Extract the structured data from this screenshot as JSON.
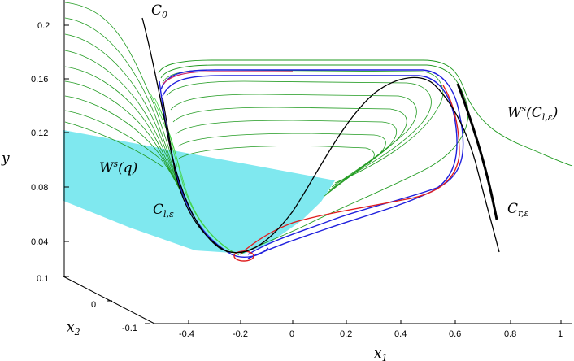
{
  "figure": {
    "y_axis": {
      "label": "y",
      "ticks": [
        "0.04",
        "0.08",
        "0.12",
        "0.16",
        "0.2"
      ]
    },
    "x1_axis": {
      "label_main": "x",
      "label_sub": "1",
      "ticks": [
        "-0.4",
        "-0.2",
        "0",
        "0.2",
        "0.4",
        "0.6",
        "0.8",
        "1"
      ]
    },
    "x2_axis": {
      "label_main": "x",
      "label_sub": "2",
      "ticks": [
        "0.1",
        "0",
        "-0.1"
      ]
    },
    "annotations": {
      "c0_main": "C",
      "c0_sub": "0",
      "wsq_main": "W",
      "wsq_sup": "s",
      "wsq_arg": "(q)",
      "wscl_main": "W",
      "wscl_sup": "s",
      "wscl_arg_open": "(C",
      "wscl_arg_sub": "l,ε",
      "wscl_arg_close": ")",
      "cle_main": "C",
      "cle_sub": "l,ε",
      "cre_main": "C",
      "cre_sub": "r,ε"
    },
    "colors": {
      "surface": "#7fe8ef",
      "green": "#1f9a1f",
      "lightgreen": "#3fd33f",
      "blue": "#1f1fdd",
      "red": "#e01f1f",
      "black": "#000000",
      "magenta": "#cc2266"
    }
  }
}
